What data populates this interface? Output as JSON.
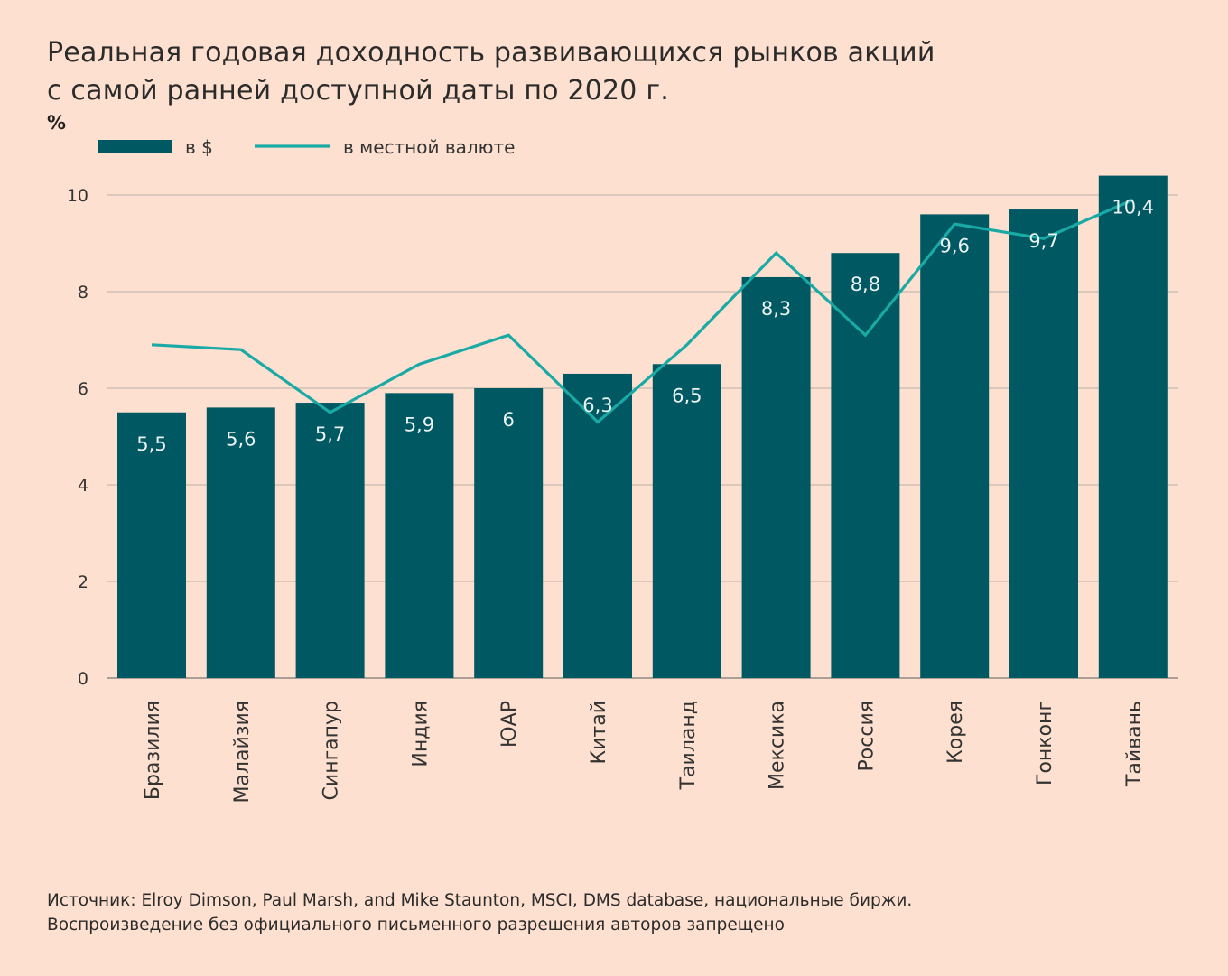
{
  "title_line1": "Реальная годовая доходность развивающихся рынков акций",
  "title_line2": "с самой ранней доступной даты по 2020 г.",
  "source_line1": "Источник: Elroy Dimson, Paul Marsh, and Mike Staunton, MSCI, DMS database, национальные биржи.",
  "source_line2": "Воспроизведение без официального письменного разрешения авторов запрещено",
  "colors": {
    "background": "#fde0cf",
    "bar": "#005862",
    "line": "#19aaa6",
    "grid": "#c9b9ae",
    "bar_label": "#eaf2f2"
  },
  "chart_data": {
    "type": "bar",
    "ylabel": "%",
    "ylim": [
      0,
      10.5
    ],
    "yticks": [
      0,
      2,
      4,
      6,
      8,
      10
    ],
    "grid": true,
    "legend_position": "top-left",
    "categories": [
      "Бразилия",
      "Малайзия",
      "Сингапур",
      "Индия",
      "ЮАР",
      "Китай",
      "Таиланд",
      "Мексика",
      "Россия",
      "Корея",
      "Гонконг",
      "Тайвань"
    ],
    "series": [
      {
        "name": "в $",
        "type": "bar",
        "values": [
          5.5,
          5.6,
          5.7,
          5.9,
          6,
          6.3,
          6.5,
          8.3,
          8.8,
          9.6,
          9.7,
          10.4
        ],
        "labels": [
          "5,5",
          "5,6",
          "5,7",
          "5,9",
          "6",
          "6,3",
          "6,5",
          "8,3",
          "8,8",
          "9,6",
          "9,7",
          "10,4"
        ]
      },
      {
        "name": "в местной валюте",
        "type": "line",
        "values": [
          6.9,
          6.8,
          5.5,
          6.5,
          7.1,
          5.3,
          6.9,
          8.8,
          7.1,
          9.4,
          9.1,
          9.9
        ]
      }
    ]
  }
}
